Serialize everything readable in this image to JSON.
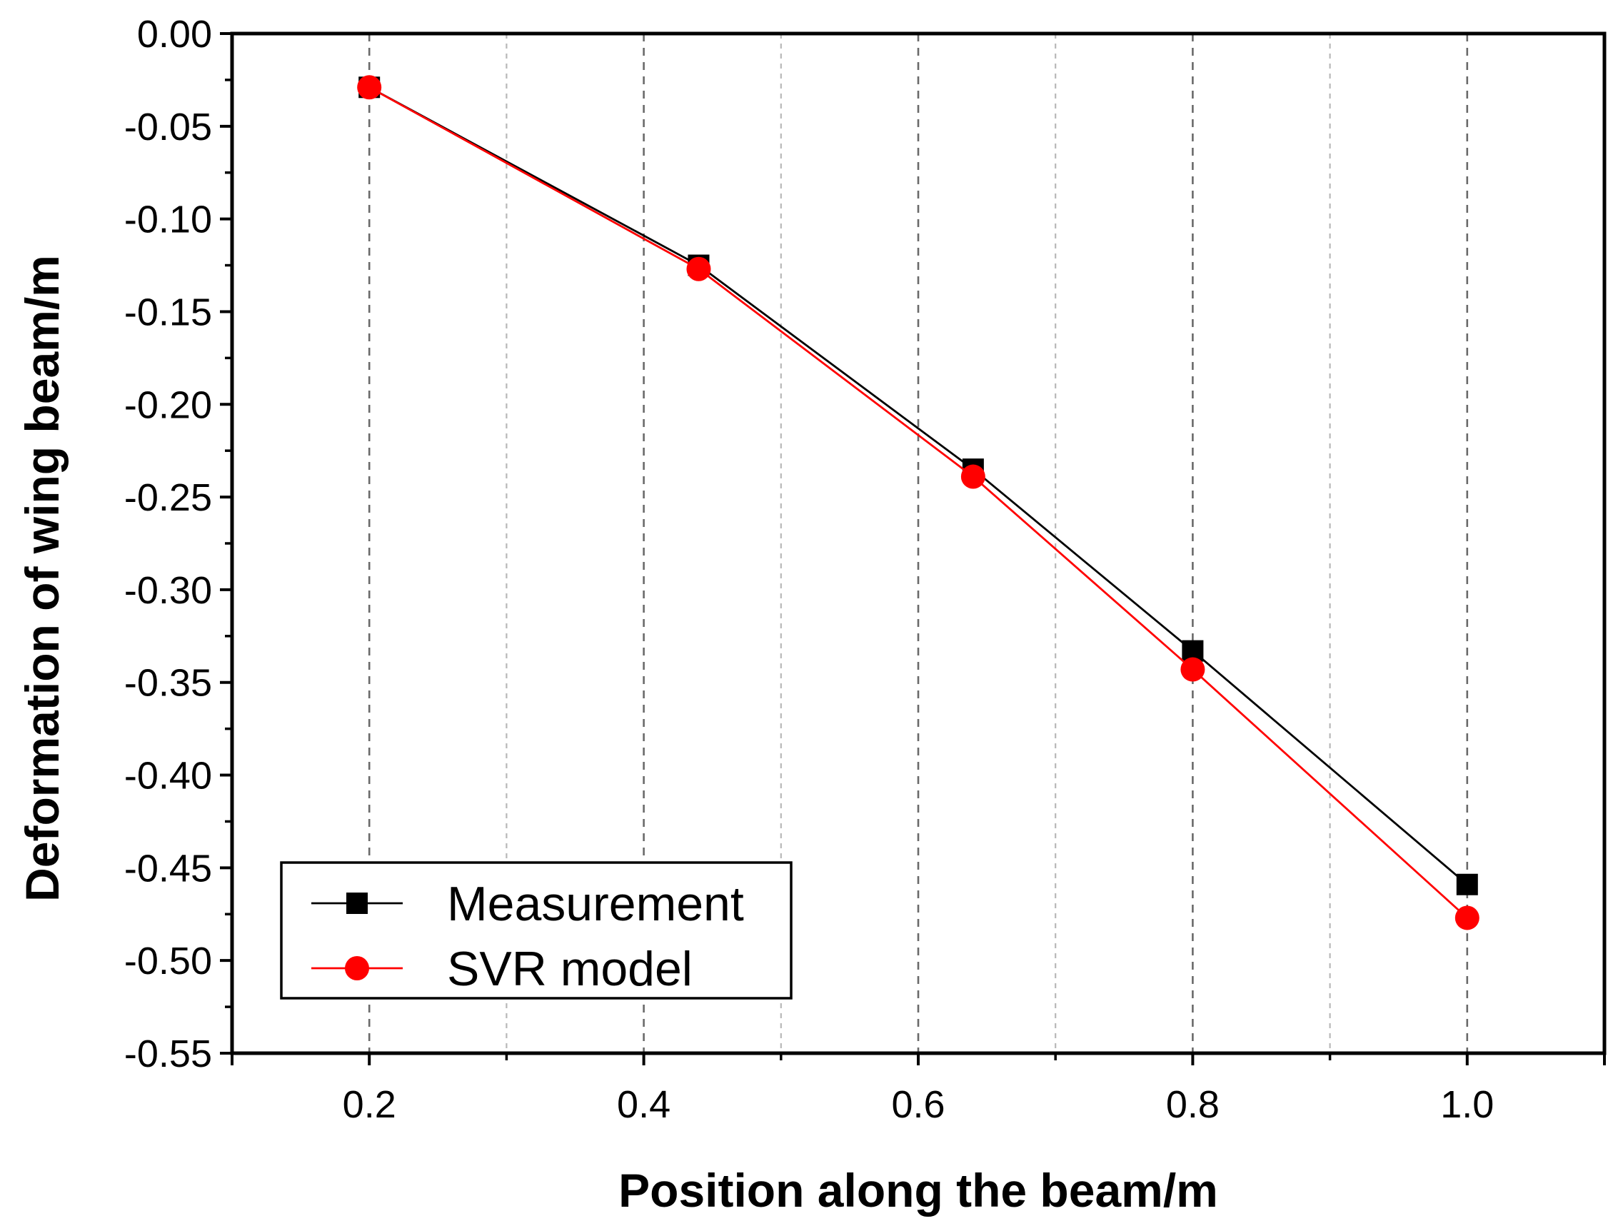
{
  "chart_data": {
    "type": "line",
    "title": "",
    "xlabel": "Position along the beam/m",
    "ylabel": "Deformation of wing beam/m",
    "xlim": [
      0.1,
      1.1
    ],
    "ylim": [
      -0.55,
      0.0
    ],
    "x_major_ticks": [
      0.2,
      0.4,
      0.6,
      0.8,
      1.0
    ],
    "x_tick_labels": [
      "0.2",
      "0.4",
      "0.6",
      "0.8",
      "1.0"
    ],
    "x_minor_ticks": [
      0.3,
      0.5,
      0.7,
      0.9
    ],
    "y_major_ticks": [
      0.0,
      -0.05,
      -0.1,
      -0.15,
      -0.2,
      -0.25,
      -0.3,
      -0.35,
      -0.4,
      -0.45,
      -0.5,
      -0.55
    ],
    "y_tick_labels": [
      "0.00",
      "-0.05",
      "-0.10",
      "-0.15",
      "-0.20",
      "-0.25",
      "-0.30",
      "-0.35",
      "-0.40",
      "-0.45",
      "-0.50",
      "-0.55"
    ],
    "grid": "vertical dashed",
    "legend_position": "bottom-left",
    "series": [
      {
        "name": "Measurement",
        "color": "#000000",
        "marker": "square",
        "x": [
          0.2,
          0.44,
          0.64,
          0.8,
          1.0
        ],
        "y": [
          -0.029,
          -0.125,
          -0.235,
          -0.333,
          -0.459
        ]
      },
      {
        "name": "SVR model",
        "color": "#ff0000",
        "marker": "circle",
        "x": [
          0.2,
          0.44,
          0.64,
          0.8,
          1.0
        ],
        "y": [
          -0.029,
          -0.127,
          -0.239,
          -0.343,
          -0.477
        ]
      }
    ]
  }
}
